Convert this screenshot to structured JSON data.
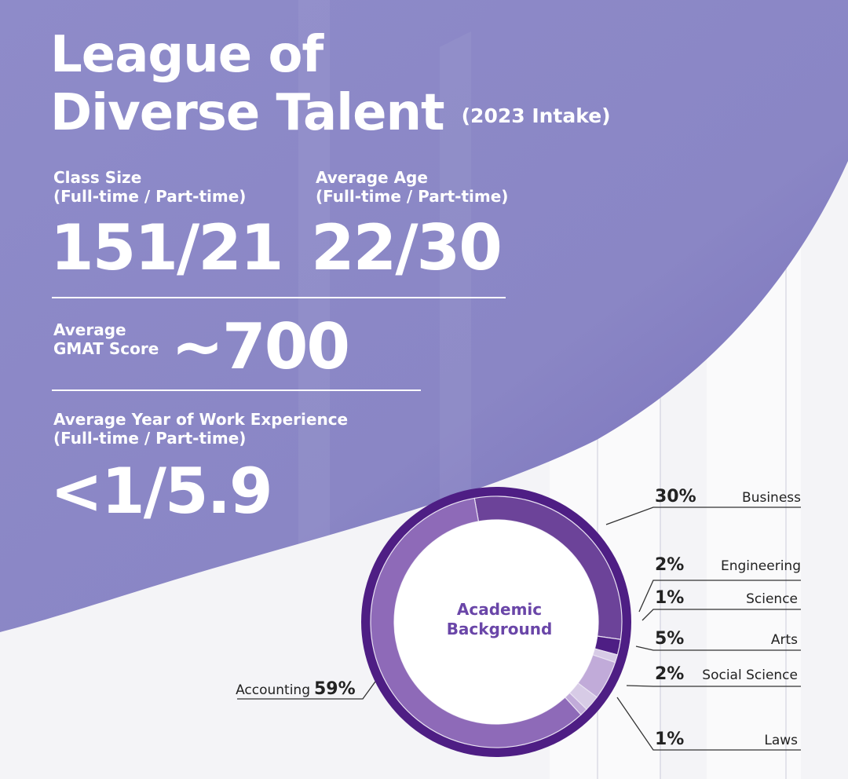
{
  "title": {
    "line1": "League of",
    "line2": "Diverse Talent",
    "intake": "(2023 Intake)"
  },
  "stats": {
    "class_size": {
      "label1": "Class Size",
      "label2": "(Full-time / Part-time)",
      "value": "151/21"
    },
    "average_age": {
      "label1": "Average Age",
      "label2": "(Full-time / Part-time)",
      "value": "22/30"
    },
    "gmat": {
      "label1": "Average",
      "label2": "GMAT Score",
      "value": "~700"
    },
    "work_experience": {
      "label1": "Average Year of Work Experience",
      "label2": "(Full-time / Part-time)",
      "value": "<1/5.9"
    }
  },
  "colors": {
    "band": "#8a87c6",
    "ring_dark": "#4e1e84",
    "business": "#6c4399",
    "accounting": "#8e6ab8",
    "arts": "#c1abd9",
    "thin": "#d7cbe6"
  },
  "chart_data": {
    "type": "pie",
    "center_label": [
      "Academic",
      "Background"
    ],
    "labels": [
      "Business",
      "Engineering",
      "Science",
      "Arts",
      "Social Science",
      "Laws",
      "Accounting"
    ],
    "values": [
      30,
      2,
      1,
      5,
      2,
      1,
      59
    ],
    "value_labels": [
      "30%",
      "2%",
      "1%",
      "5%",
      "2%",
      "1%",
      "59%"
    ]
  }
}
